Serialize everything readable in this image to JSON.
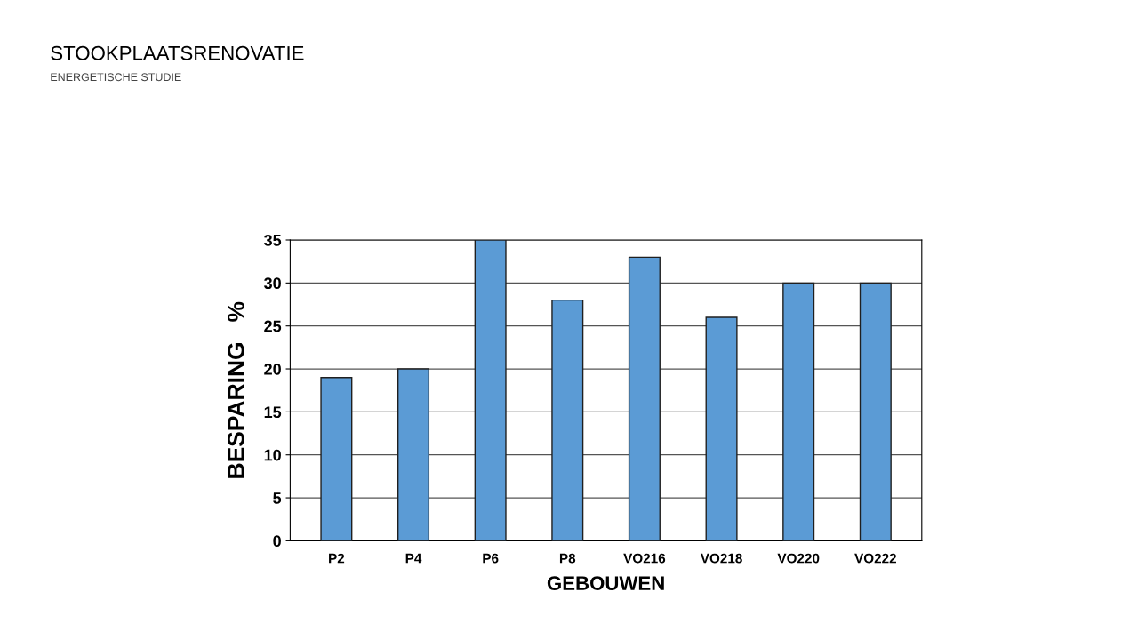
{
  "chart_data": {
    "type": "bar",
    "title": "STOOKPLAATSRENOVATIE",
    "subtitle": "ENERGETISCHE STUDIE",
    "xlabel": "GEBOUWEN",
    "ylabel": "BESPARING   %",
    "categories": [
      "P2",
      "P4",
      "P6",
      "P8",
      "VO216",
      "VO218",
      "VO220",
      "VO222"
    ],
    "values": [
      19,
      20,
      35,
      28,
      33,
      26,
      30,
      30
    ],
    "color": "#5b9bd5",
    "ylim": [
      0,
      35
    ],
    "yticks": [
      0,
      5,
      10,
      15,
      20,
      25,
      30,
      35
    ],
    "grid": "y"
  }
}
